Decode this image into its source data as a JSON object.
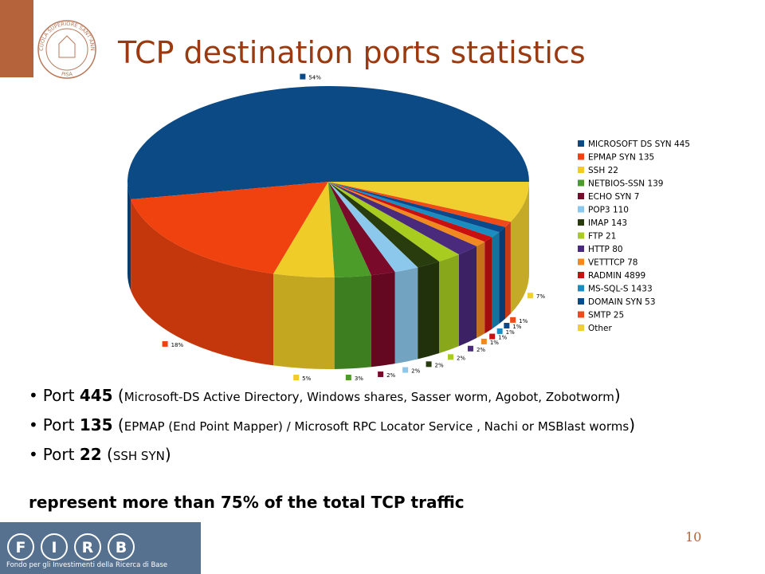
{
  "slide": {
    "title": "TCP destination ports statistics",
    "seal_text": "SCUOLA SUPERIORE SANT'ANNA",
    "seal_city": "PISA",
    "bullets": [
      {
        "label": "Port",
        "port": "445",
        "open": "(",
        "detail": "Microsoft-DS Active Directory, Windows shares, Sasser worm, Agobot, Zobotworm",
        "close": ")"
      },
      {
        "label": "Port",
        "port": "135",
        "open": "(",
        "detail": "EPMAP (End Point Mapper) / Microsoft RPC Locator Service , Nachi or MSBlast worms",
        "close": ")"
      },
      {
        "label": "Port",
        "port": "22",
        "open": "(",
        "detail": "SSH SYN",
        "close": ")"
      }
    ],
    "conclusion": "represent more than 75% of the total TCP traffic",
    "page_number": "10",
    "footer_letters": [
      "F",
      "I",
      "R",
      "B"
    ],
    "footer_text": "Fondo per gli Investimenti della Ricerca di Base"
  },
  "chart_data": {
    "type": "pie3d",
    "categories": [
      "MICROSOFT DS SYN 445",
      "EPMAP SYN 135",
      "SSH 22",
      "NETBIOS-SSN 139",
      "ECHO SYN 7",
      "POP3 110",
      "IMAP 143",
      "FTP 21",
      "HTTP  80",
      "VETTTCP 78",
      "RADMIN 4899",
      "MS-SQL-S 1433",
      "DOMAIN SYN 53",
      "SMTP 25",
      "Other"
    ],
    "values": [
      54,
      18,
      5,
      3,
      2,
      2,
      2,
      2,
      2,
      1,
      1,
      1,
      1,
      1,
      7
    ],
    "value_labels": [
      "54%",
      "18%",
      "5%",
      "3%",
      "2%",
      "2%",
      "2%",
      "2%",
      "2%",
      "1%",
      "1%",
      "1%",
      "1%",
      "1%",
      "7%"
    ],
    "colors": [
      "#0b4a85",
      "#f0420f",
      "#f0cc28",
      "#4b9c28",
      "#7a0a2a",
      "#8cc8ec",
      "#283c0e",
      "#a8cc20",
      "#4a2a7c",
      "#f08a20",
      "#c81010",
      "#1a8cc0",
      "#0a4a8c",
      "#f04a18",
      "#f0d030"
    ],
    "legend": "right"
  }
}
